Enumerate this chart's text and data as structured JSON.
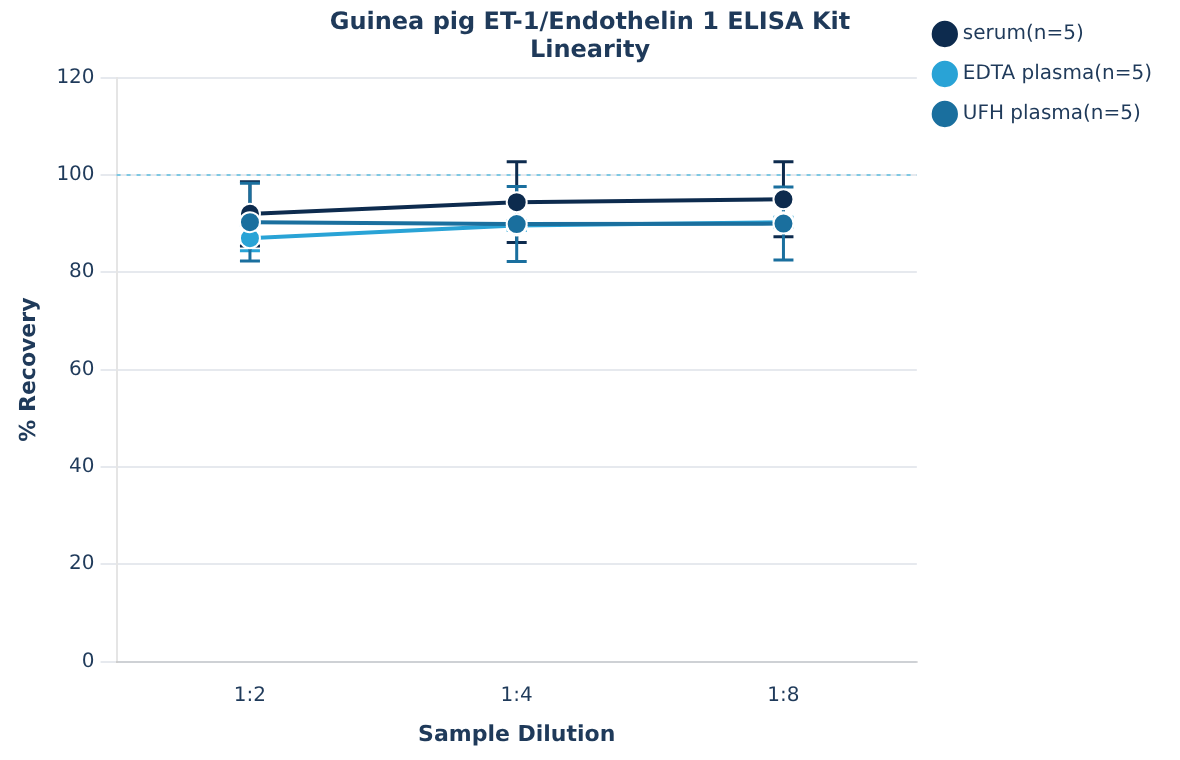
{
  "chart_data": {
    "type": "line",
    "title": "Guinea pig ET-1/Endothelin 1 ELISA Kit",
    "subtitle": "Linearity",
    "xlabel": "Sample Dilution",
    "ylabel": "% Recovery",
    "categories": [
      "1:2",
      "1:4",
      "1:8"
    ],
    "series": [
      {
        "name": "serum(n=5)",
        "color": "#0d2b4e",
        "values": [
          92,
          94.4,
          95
        ],
        "errors": [
          6.6,
          8.3,
          7.7
        ]
      },
      {
        "name": "EDTA plasma(n=5)",
        "color": "#29a3d6",
        "values": [
          87,
          89.6,
          90.3
        ],
        "errors": [
          2.6,
          1,
          1
        ]
      },
      {
        "name": "UFH plasma(n=5)",
        "color": "#1a6f9e",
        "values": [
          90.3,
          89.9,
          90
        ],
        "errors": [
          8,
          7.7,
          7.5
        ]
      }
    ],
    "ylim": [
      0,
      120
    ],
    "yticks": [
      0,
      20,
      40,
      60,
      80,
      100,
      120
    ],
    "grid": "y",
    "legend": "top right",
    "marker": "circle",
    "line_style": "solid",
    "ref_lines": [
      {
        "axis": "y",
        "value": 100,
        "color": "#7ec8e3",
        "line_style": "dotted"
      }
    ]
  }
}
